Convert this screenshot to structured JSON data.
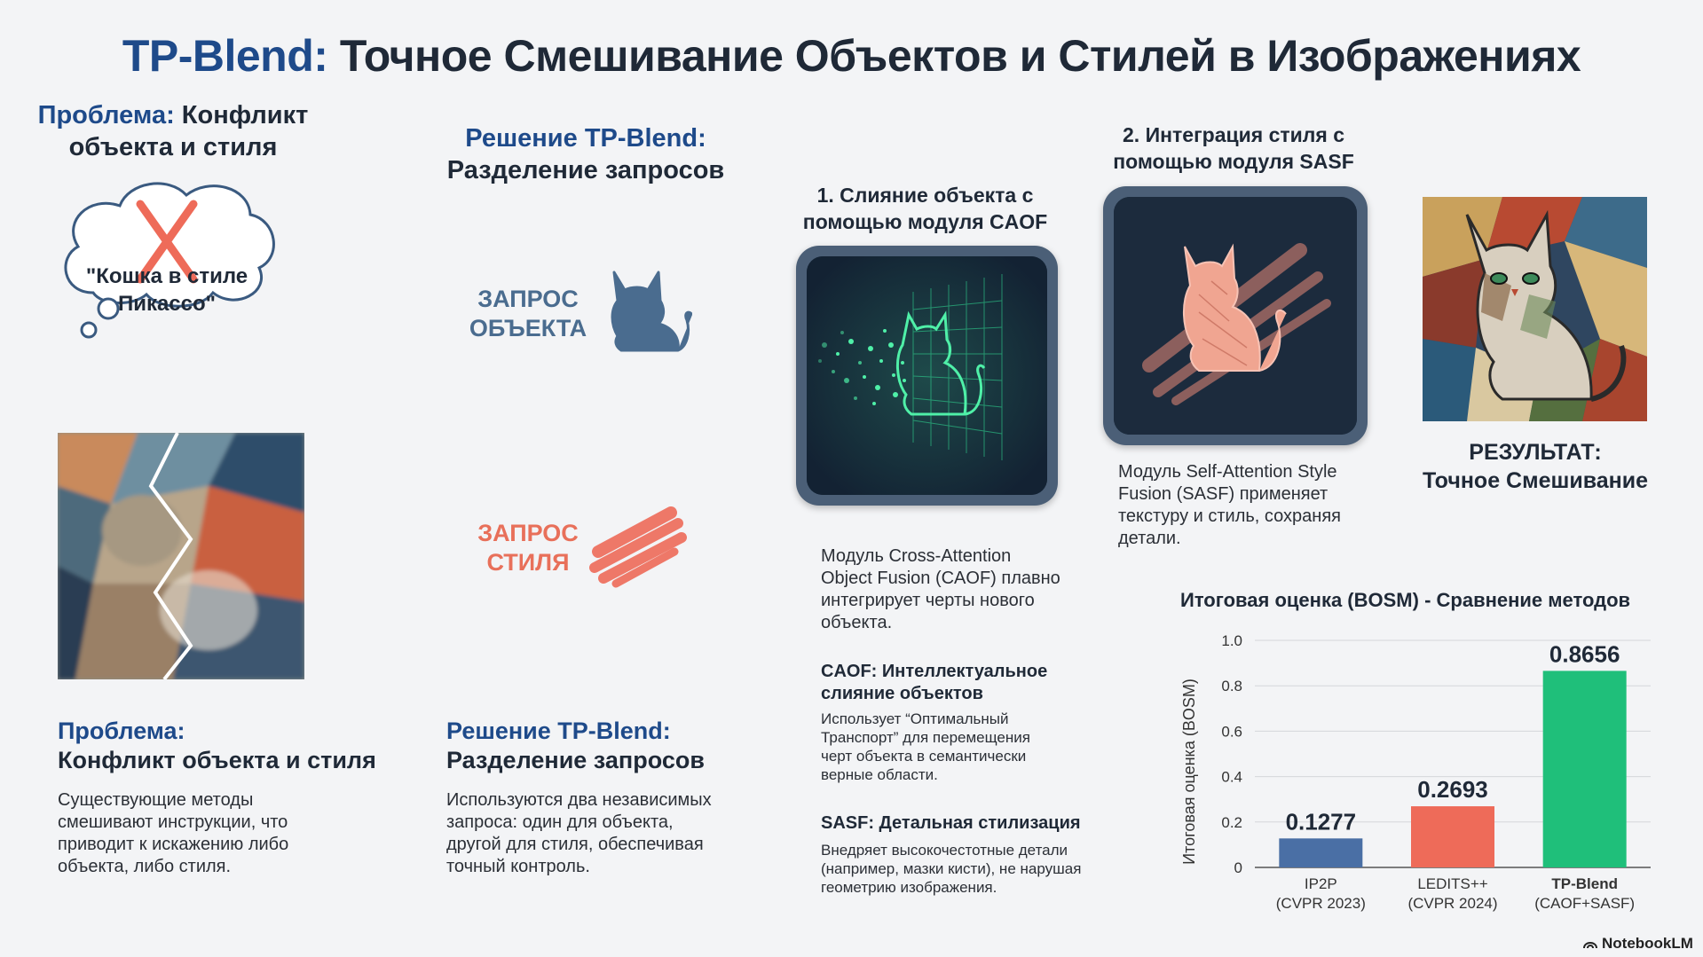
{
  "title": {
    "brand": "TP-Blend:",
    "rest": "Точное Смешивание Объектов и Стилей в Изображениях"
  },
  "col1": {
    "head_a": "Проблема:",
    "head_b": "Конфликт",
    "head_c": "объекта и стиля",
    "bubble_text_1": "\"Кошка в стиле",
    "bubble_text_2": "Пикассо\"",
    "sub_head_a": "Проблема:",
    "sub_head_b": "Конфликт объекта и стиля",
    "body_1": "Существующие методы",
    "body_2": "смешивают инструкции, что",
    "body_3": "приводит к искажению либо",
    "body_4": "объекта, либо стиля."
  },
  "col2": {
    "head_a": "Решение TP-Blend:",
    "head_b": "Разделение запросов",
    "object_query_1": "ЗАПРОС",
    "object_query_2": "ОБЪЕКТА",
    "style_query_1": "ЗАПРОС",
    "style_query_2": "СТИЛЯ",
    "sub_head_a": "Решение TP-Blend:",
    "sub_head_b": "Разделение запросов",
    "body_1": "Используются два независимых",
    "body_2": "запроса: один для объекта,",
    "body_3": "другой для стиля, обеспечивая",
    "body_4": "точный контроль.",
    "accent_object": "#4a6c8f",
    "accent_style": "#e8705a"
  },
  "col3": {
    "head_1": "1. Слияние объекта с",
    "head_2": "помощью модуля CAOF",
    "desc_1": "Модуль Cross-Attention",
    "desc_2": "Object Fusion (CAOF) плавно",
    "desc_3": "интегрирует черты нового",
    "desc_4": "объекта.",
    "caof_head_1": "CAOF: Интеллектуальное",
    "caof_head_2": "слияние объектов",
    "caof_body_1": "Использует “Оптимальный",
    "caof_body_2": "Транспорт” для перемещения",
    "caof_body_3": "черт объекта в семантически",
    "caof_body_4": "верные области.",
    "sasf_head": "SASF: Детальная стилизация",
    "sasf_body_1": "Внедряет высокочестотные детали",
    "sasf_body_2": "(например, мазки кисти), не нарушая",
    "sasf_body_3": "геометрию изображения."
  },
  "col4": {
    "head_1": "2. Интеграция стиля с",
    "head_2": "помощью модуля SASF",
    "desc_1": "Модуль Self-Attention Style",
    "desc_2": "Fusion (SASF) применяет",
    "desc_3": "текстуру и стиль, сохраняя",
    "desc_4": "детали."
  },
  "result": {
    "label_1": "РЕЗУЛЬТАТ:",
    "label_2": "Точное Смешивание"
  },
  "chart_data": {
    "type": "bar",
    "title": "Итоговая оценка (BOSM) - Сравнение методов",
    "ylabel": "Итоговая оценка (BOSM)",
    "ylim": [
      0,
      1.0
    ],
    "yticks": [
      "0",
      "0.2",
      "0.4",
      "0.6",
      "0.8",
      "1.0"
    ],
    "categories": [
      {
        "name": "IP2P",
        "sub": "(CVPR 2023)",
        "value": 0.1277,
        "label": "0.1277",
        "color": "#4a6fa5",
        "bold": false
      },
      {
        "name": "LEDITS++",
        "sub": "(CVPR 2024)",
        "value": 0.2693,
        "label": "0.2693",
        "color": "#ee6b59",
        "bold": false
      },
      {
        "name": "TP-Blend",
        "sub": "(CAOF+SASF)",
        "value": 0.8656,
        "label": "0.8656",
        "color": "#1fbf7a",
        "bold": true
      }
    ],
    "grid": true
  },
  "footer": {
    "logo": "NotebookLM"
  }
}
